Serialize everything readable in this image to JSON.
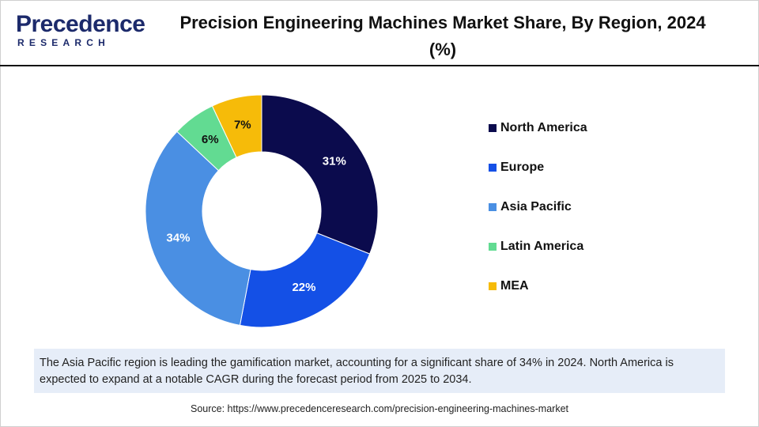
{
  "logo": {
    "name": "Precedence",
    "tagline": "RESEARCH"
  },
  "chart_data": {
    "type": "donut",
    "title": "Precision Engineering Machines Market Share, By Region, 2024 (%)",
    "categories": [
      "North America",
      "Europe",
      "Asia Pacific",
      "Latin America",
      "MEA"
    ],
    "values": [
      31,
      22,
      34,
      6,
      7
    ],
    "value_labels": [
      "31%",
      "22%",
      "34%",
      "6%",
      "7%"
    ],
    "colors": [
      "#0b0b4d",
      "#1450e6",
      "#4a8fe3",
      "#62db92",
      "#f6bb09"
    ],
    "legend": "right"
  },
  "note": "The Asia Pacific region is leading the gamification market, accounting for a significant share of 34% in 2024. North America is expected to expand at a notable CAGR during the forecast period from 2025 to 2034.",
  "source": "Source: https://www.precedenceresearch.com/precision-engineering-machines-market"
}
